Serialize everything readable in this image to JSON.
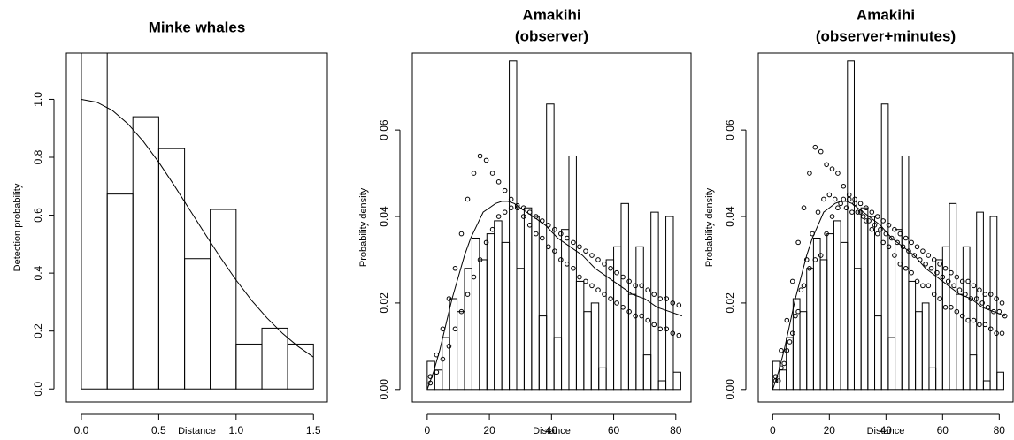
{
  "chart_data": [
    {
      "type": "histogram",
      "title": [
        "Minke whales"
      ],
      "xlabel": "Distance",
      "ylabel": "Detection probability",
      "color": "#000000",
      "bins": [
        0,
        0.167,
        0.333,
        0.5,
        0.667,
        0.833,
        1,
        1.167,
        1.333,
        1.5
      ],
      "values": [
        1.16,
        0.673,
        0.94,
        0.83,
        0.45,
        0.62,
        0.155,
        0.21,
        0.155
      ],
      "xlim": [
        -0.097,
        1.59
      ],
      "ylim": [
        -0.045,
        1.16
      ],
      "xticks": [
        {
          "value": 0,
          "label": "0.0"
        },
        0.5,
        {
          "value": 1,
          "label": "1.0"
        },
        1.5
      ],
      "yticks": [
        {
          "value": 0,
          "label": "0.0"
        },
        0.2,
        0.4,
        0.6,
        0.8,
        {
          "value": 1,
          "label": "1.0"
        }
      ],
      "curve": {
        "x": [
          0,
          0.1,
          0.2,
          0.3,
          0.4,
          0.5,
          0.6,
          0.7,
          0.8,
          0.9,
          1,
          1.1,
          1.2,
          1.3,
          1.4,
          1.5
        ],
        "values": [
          1,
          0.99,
          0.962,
          0.916,
          0.855,
          0.783,
          0.703,
          0.619,
          0.535,
          0.453,
          0.376,
          0.306,
          0.245,
          0.192,
          0.147,
          0.11
        ]
      },
      "points": []
    },
    {
      "type": "histogram",
      "title": [
        "Amakihi",
        "(observer)"
      ],
      "xlabel": "Distance",
      "ylabel": "Probability density",
      "color": "#000000",
      "bins": [
        0,
        2.4,
        4.8,
        7.2,
        9.6,
        12,
        14.4,
        16.8,
        19.2,
        21.6,
        24,
        26.4,
        28.8,
        31.2,
        33.6,
        36,
        38.4,
        40.8,
        43.2,
        45.6,
        48,
        50.4,
        52.8,
        55.2,
        57.6,
        60,
        62.4,
        64.8,
        67.2,
        69.6,
        72,
        74.4,
        76.8,
        79.2,
        81.6
      ],
      "values": [
        0.0065,
        0.0045,
        0.012,
        0.021,
        0.018,
        0.028,
        0.035,
        0.03,
        0.036,
        0.039,
        0.034,
        0.076,
        0.028,
        0.042,
        0.04,
        0.017,
        0.066,
        0.012,
        0.037,
        0.054,
        0.025,
        0.018,
        0.02,
        0.005,
        0.03,
        0.033,
        0.043,
        0.022,
        0.033,
        0.008,
        0.041,
        0.002,
        0.04,
        0.004
      ],
      "xlim": [
        -4.8,
        84.9
      ],
      "ylim": [
        -0.0029,
        0.0778
      ],
      "xticks": [
        0,
        20,
        40,
        60,
        80
      ],
      "yticks": [
        {
          "value": 0,
          "label": "0.00"
        },
        0.02,
        0.04,
        0.06
      ],
      "curve": {
        "x": [
          0,
          2,
          4,
          6,
          8,
          10,
          12,
          14,
          16,
          18,
          20,
          22,
          24,
          26,
          28,
          30,
          34,
          38,
          42,
          46,
          50,
          54,
          58,
          62,
          66,
          70,
          74,
          78,
          82
        ],
        "values": [
          0,
          0.004,
          0.009,
          0.015,
          0.021,
          0.026,
          0.031,
          0.035,
          0.038,
          0.041,
          0.042,
          0.043,
          0.0435,
          0.0435,
          0.043,
          0.042,
          0.04,
          0.038,
          0.035,
          0.033,
          0.031,
          0.028,
          0.026,
          0.024,
          0.022,
          0.021,
          0.019,
          0.018,
          0.017
        ]
      },
      "points": [
        {
          "x": [
            1,
            3,
            5,
            7,
            9,
            11,
            13,
            15,
            17,
            19,
            21,
            23,
            25,
            27,
            29,
            31,
            33,
            35,
            37,
            39,
            41,
            43,
            45,
            47,
            49,
            51,
            53,
            55,
            57,
            59,
            61,
            63,
            65,
            67,
            69,
            71,
            73,
            75,
            77,
            79,
            81
          ],
          "values": [
            0.003,
            0.008,
            0.014,
            0.021,
            0.028,
            0.036,
            0.044,
            0.05,
            0.054,
            0.053,
            0.05,
            0.048,
            0.046,
            0.044,
            0.042,
            0.04,
            0.038,
            0.036,
            0.035,
            0.033,
            0.032,
            0.03,
            0.029,
            0.028,
            0.026,
            0.025,
            0.024,
            0.023,
            0.022,
            0.021,
            0.02,
            0.019,
            0.018,
            0.017,
            0.017,
            0.016,
            0.015,
            0.014,
            0.014,
            0.013,
            0.0125
          ]
        },
        {
          "x": [
            1,
            3,
            5,
            7,
            9,
            11,
            13,
            15,
            17,
            19,
            21,
            23,
            25,
            27,
            29,
            31,
            33,
            35,
            37,
            39,
            41,
            43,
            45,
            47,
            49,
            51,
            53,
            55,
            57,
            59,
            61,
            63,
            65,
            67,
            69,
            71,
            73,
            75,
            77,
            79,
            81
          ],
          "values": [
            0.0015,
            0.004,
            0.007,
            0.01,
            0.014,
            0.018,
            0.022,
            0.026,
            0.03,
            0.034,
            0.037,
            0.04,
            0.041,
            0.042,
            0.0425,
            0.042,
            0.041,
            0.04,
            0.039,
            0.038,
            0.037,
            0.036,
            0.035,
            0.034,
            0.033,
            0.032,
            0.031,
            0.03,
            0.029,
            0.028,
            0.027,
            0.026,
            0.025,
            0.024,
            0.024,
            0.023,
            0.022,
            0.021,
            0.021,
            0.02,
            0.0195
          ]
        }
      ]
    },
    {
      "type": "histogram",
      "title": [
        "Amakihi",
        "(observer+minutes)"
      ],
      "xlabel": "Distance",
      "ylabel": "Probability density",
      "color": "#000000",
      "bins": [
        0,
        2.4,
        4.8,
        7.2,
        9.6,
        12,
        14.4,
        16.8,
        19.2,
        21.6,
        24,
        26.4,
        28.8,
        31.2,
        33.6,
        36,
        38.4,
        40.8,
        43.2,
        45.6,
        48,
        50.4,
        52.8,
        55.2,
        57.6,
        60,
        62.4,
        64.8,
        67.2,
        69.6,
        72,
        74.4,
        76.8,
        79.2,
        81.6
      ],
      "values": [
        0.0065,
        0.0045,
        0.012,
        0.021,
        0.018,
        0.028,
        0.035,
        0.03,
        0.036,
        0.039,
        0.034,
        0.076,
        0.028,
        0.042,
        0.04,
        0.017,
        0.066,
        0.012,
        0.037,
        0.054,
        0.025,
        0.018,
        0.02,
        0.005,
        0.03,
        0.033,
        0.043,
        0.022,
        0.033,
        0.008,
        0.041,
        0.002,
        0.04,
        0.004
      ],
      "xlim": [
        -5.1,
        84.9
      ],
      "ylim": [
        -0.0029,
        0.0778
      ],
      "xticks": [
        0,
        20,
        40,
        60,
        80
      ],
      "yticks": [
        {
          "value": 0,
          "label": "0.00"
        },
        0.02,
        0.04,
        0.06
      ],
      "curve": {
        "x": [
          0,
          2,
          4,
          6,
          8,
          10,
          12,
          14,
          16,
          18,
          20,
          22,
          24,
          26,
          28,
          30,
          34,
          38,
          42,
          46,
          50,
          54,
          58,
          62,
          66,
          70,
          74,
          78,
          82
        ],
        "values": [
          0,
          0.004,
          0.009,
          0.015,
          0.021,
          0.026,
          0.031,
          0.035,
          0.038,
          0.041,
          0.042,
          0.043,
          0.0435,
          0.0435,
          0.043,
          0.042,
          0.04,
          0.038,
          0.035,
          0.033,
          0.031,
          0.028,
          0.026,
          0.024,
          0.022,
          0.021,
          0.019,
          0.018,
          0.017
        ]
      },
      "points": [
        {
          "x": [
            1,
            3,
            5,
            7,
            9,
            11,
            13,
            15,
            17,
            19,
            21,
            23,
            25,
            27,
            29,
            31,
            33,
            35,
            37,
            39,
            41,
            43,
            45,
            47,
            49,
            51,
            53,
            55,
            57,
            59,
            61,
            63,
            65,
            67,
            69,
            71,
            73,
            75,
            77,
            79,
            81
          ],
          "values": [
            0.003,
            0.009,
            0.016,
            0.025,
            0.034,
            0.042,
            0.05,
            0.056,
            0.055,
            0.052,
            0.051,
            0.05,
            0.047,
            0.044,
            0.043,
            0.041,
            0.039,
            0.037,
            0.036,
            0.034,
            0.033,
            0.031,
            0.029,
            0.028,
            0.027,
            0.025,
            0.024,
            0.024,
            0.022,
            0.021,
            0.019,
            0.019,
            0.018,
            0.017,
            0.016,
            0.016,
            0.015,
            0.015,
            0.014,
            0.013,
            0.013
          ]
        },
        {
          "x": [
            1,
            3,
            5,
            7,
            9,
            11,
            13,
            15,
            17,
            19,
            21,
            23,
            25,
            27,
            29,
            31,
            33,
            35,
            37,
            39,
            41,
            43,
            45,
            47,
            49,
            51,
            53,
            55,
            57,
            59,
            61,
            63,
            65,
            67,
            69,
            71,
            73,
            75,
            77,
            79,
            81
          ],
          "values": [
            0.002,
            0.005,
            0.009,
            0.013,
            0.018,
            0.024,
            0.028,
            0.03,
            0.031,
            0.036,
            0.04,
            0.042,
            0.044,
            0.045,
            0.044,
            0.043,
            0.042,
            0.041,
            0.04,
            0.039,
            0.038,
            0.037,
            0.036,
            0.035,
            0.034,
            0.033,
            0.032,
            0.031,
            0.03,
            0.029,
            0.028,
            0.027,
            0.026,
            0.025,
            0.025,
            0.024,
            0.023,
            0.022,
            0.022,
            0.021,
            0.02
          ]
        },
        {
          "x": [
            2,
            4,
            6,
            8,
            10,
            12,
            14,
            16,
            18,
            20,
            22,
            24,
            26,
            28,
            30,
            32,
            34,
            36,
            38,
            40,
            42,
            44,
            46,
            48,
            50,
            52,
            54,
            56,
            58,
            60,
            62,
            64,
            66,
            68,
            70,
            72,
            74,
            76,
            78,
            80,
            82
          ],
          "values": [
            0.002,
            0.006,
            0.011,
            0.017,
            0.023,
            0.03,
            0.036,
            0.041,
            0.044,
            0.045,
            0.044,
            0.043,
            0.042,
            0.041,
            0.041,
            0.04,
            0.039,
            0.038,
            0.037,
            0.036,
            0.035,
            0.034,
            0.033,
            0.032,
            0.031,
            0.03,
            0.029,
            0.028,
            0.027,
            0.026,
            0.025,
            0.024,
            0.023,
            0.022,
            0.021,
            0.021,
            0.02,
            0.019,
            0.018,
            0.018,
            0.017
          ]
        }
      ]
    }
  ]
}
